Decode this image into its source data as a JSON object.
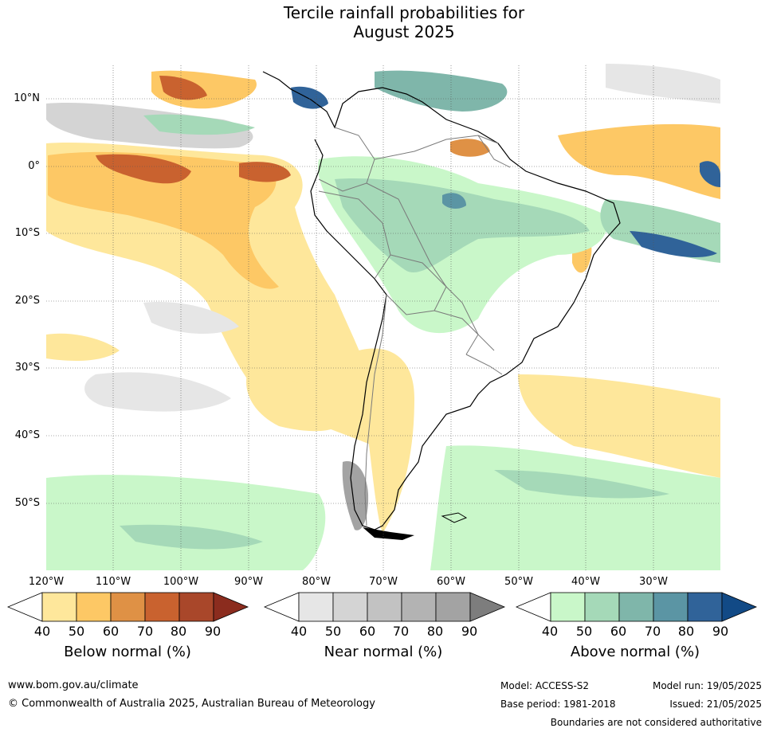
{
  "title_line1": "Tercile rainfall probabilities for",
  "title_line2": "August 2025",
  "lat_labels": [
    "10°N",
    "0°",
    "10°S",
    "20°S",
    "30°S",
    "40°S",
    "50°S"
  ],
  "lon_labels": [
    "120°W",
    "110°W",
    "100°W",
    "90°W",
    "80°W",
    "70°W",
    "60°W",
    "50°W",
    "40°W",
    "30°W"
  ],
  "legends": [
    {
      "title": "Below normal (%)",
      "ticks": [
        "40",
        "50",
        "60",
        "70",
        "80",
        "90"
      ],
      "colors": [
        "#ffffff",
        "#fee79b",
        "#fdc865",
        "#df9145",
        "#c9622f",
        "#a9472a",
        "#8b2c1e"
      ]
    },
    {
      "title": "Near normal (%)",
      "ticks": [
        "40",
        "50",
        "60",
        "70",
        "80",
        "90"
      ],
      "colors": [
        "#ffffff",
        "#e6e6e6",
        "#d4d4d4",
        "#c2c2c2",
        "#b3b3b3",
        "#a3a3a3",
        "#7d7d7d"
      ]
    },
    {
      "title": "Above normal (%)",
      "ticks": [
        "40",
        "50",
        "60",
        "70",
        "80",
        "90"
      ],
      "colors": [
        "#ffffff",
        "#c9f7c9",
        "#a5d9b8",
        "#7fb6aa",
        "#5b95a4",
        "#306399",
        "#124a86"
      ]
    }
  ],
  "footer": {
    "website": "www.bom.gov.au/climate",
    "copyright": "© Commonwealth of Australia 2025, Australian Bureau of Meteorology",
    "model": "Model: ACCESS-S2",
    "model_run": "Model run: 19/05/2025",
    "base_period": "Base period: 1981-2018",
    "issued": "Issued: 21/05/2025",
    "disclaimer": "Boundaries are not considered authoritative"
  }
}
